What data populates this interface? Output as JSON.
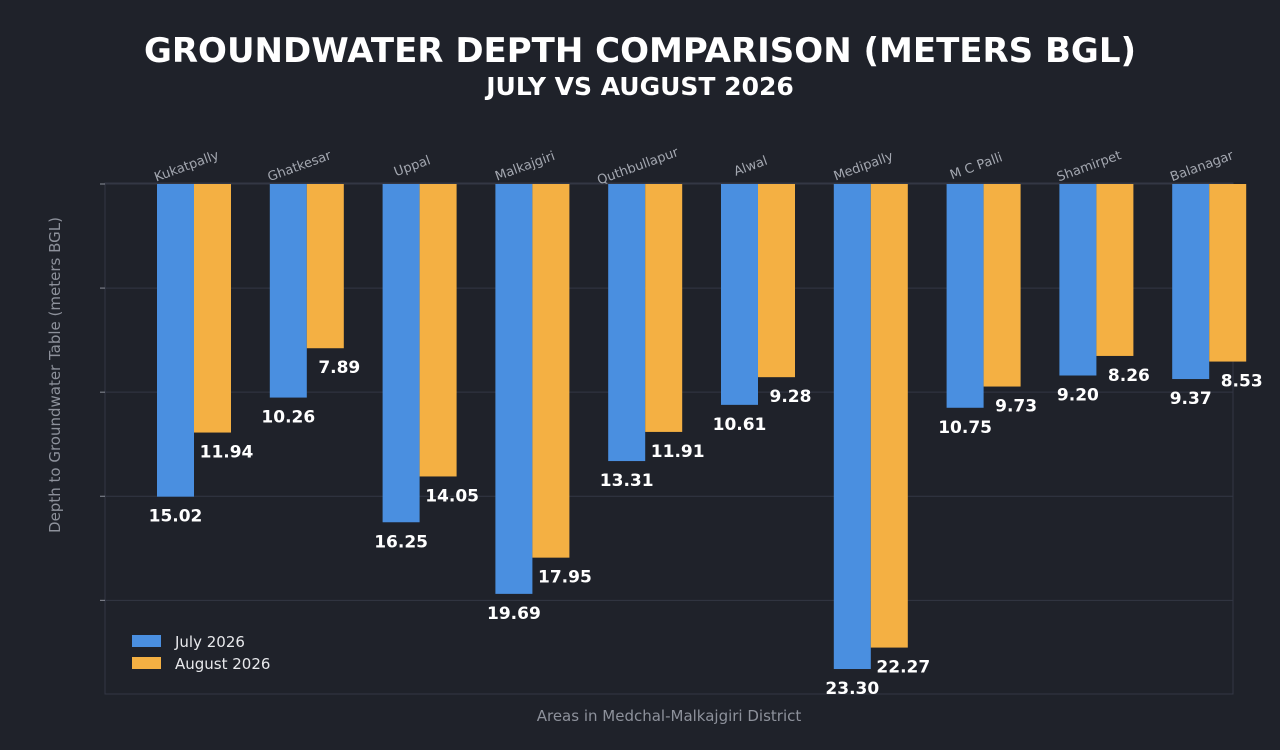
{
  "chart_data": {
    "type": "bar",
    "title": "GROUNDWATER DEPTH COMPARISON (METERS BGL)",
    "subtitle": "JULY VS AUGUST 2026",
    "xlabel": "Areas in Medchal-Malkajgiri District",
    "ylabel": "Depth to Groundwater Table (meters BGL)",
    "y_inverted": true,
    "ylim": [
      0,
      24.5
    ],
    "grid": true,
    "legend_position": "bottom-left",
    "categories": [
      "Kukatpally",
      "Ghatkesar",
      "Uppal",
      "Malkajgiri",
      "Quthbullapur",
      "Alwal",
      "Medipally",
      "M C Palli",
      "Shamirpet",
      "Balanagar"
    ],
    "series": [
      {
        "name": "July 2026",
        "color": "#4a8fe0",
        "values": [
          15.02,
          10.26,
          16.25,
          19.69,
          13.31,
          10.61,
          23.3,
          10.75,
          9.2,
          9.37
        ],
        "labels": [
          "15.02",
          "10.26",
          "16.25",
          "19.69",
          "13.31",
          "10.61",
          "23.30",
          "10.75",
          "9.20",
          "9.37"
        ]
      },
      {
        "name": "August 2026",
        "color": "#f4b043",
        "values": [
          11.94,
          7.89,
          14.05,
          17.95,
          11.91,
          9.28,
          22.27,
          9.73,
          8.26,
          8.53
        ],
        "labels": [
          "11.94",
          "7.89",
          "14.05",
          "17.95",
          "11.91",
          "9.28",
          "22.27",
          "9.73",
          "8.26",
          "8.53"
        ]
      }
    ],
    "colors": {
      "background": "#1f222a",
      "grid": "#333744",
      "text": "#ffffff",
      "muted_text": "#8d919b"
    }
  }
}
